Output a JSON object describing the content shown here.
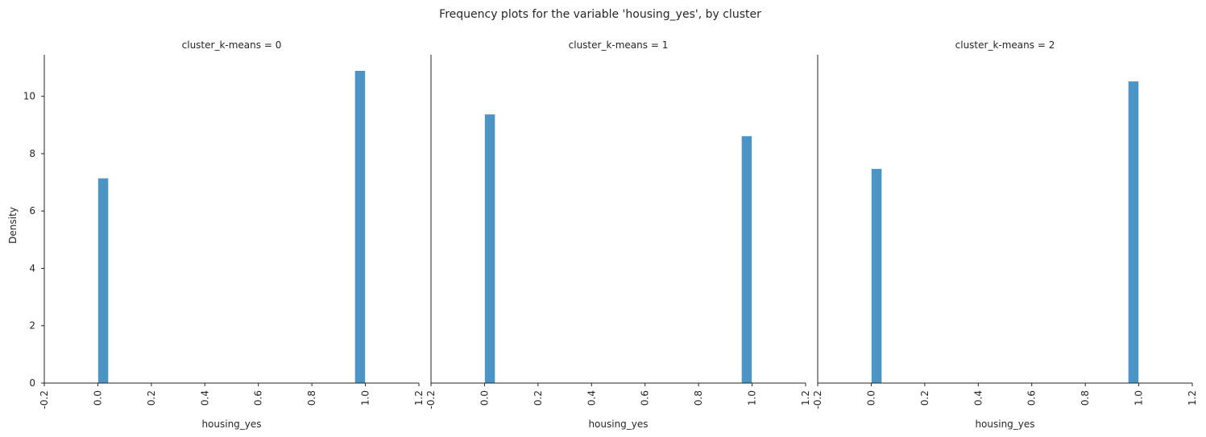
{
  "chart_data": {
    "type": "bar",
    "title": "Frequency plots for the variable 'housing_yes', by cluster",
    "xlabel": "housing_yes",
    "ylabel": "Density",
    "xlim": [
      -0.2,
      1.2
    ],
    "ylim": [
      0,
      11.45
    ],
    "xticks": [
      "-0.2",
      "0.0",
      "0.2",
      "0.4",
      "0.6",
      "0.8",
      "1.0",
      "1.2"
    ],
    "xtick_values": [
      -0.2,
      0.0,
      0.2,
      0.4,
      0.6,
      0.8,
      1.0,
      1.2
    ],
    "yticks": [
      "0",
      "2",
      "4",
      "6",
      "8",
      "10"
    ],
    "ytick_values": [
      0,
      2,
      4,
      6,
      8,
      10
    ],
    "bin_width": 0.04,
    "bar_color": "#4c94c4",
    "bar_edge_color": "#ffffff",
    "grid": false,
    "facets": [
      {
        "title": "cluster_k-means = 0",
        "bins": [
          {
            "x0": 0.0,
            "x1": 0.04,
            "density": 7.15
          },
          {
            "x0": 0.96,
            "x1": 1.0,
            "density": 10.9
          }
        ]
      },
      {
        "title": "cluster_k-means = 1",
        "bins": [
          {
            "x0": 0.0,
            "x1": 0.04,
            "density": 9.38
          },
          {
            "x0": 0.96,
            "x1": 1.0,
            "density": 8.62
          }
        ]
      },
      {
        "title": "cluster_k-means = 2",
        "bins": [
          {
            "x0": 0.0,
            "x1": 0.04,
            "density": 7.48
          },
          {
            "x0": 0.96,
            "x1": 1.0,
            "density": 10.53
          }
        ]
      }
    ]
  }
}
